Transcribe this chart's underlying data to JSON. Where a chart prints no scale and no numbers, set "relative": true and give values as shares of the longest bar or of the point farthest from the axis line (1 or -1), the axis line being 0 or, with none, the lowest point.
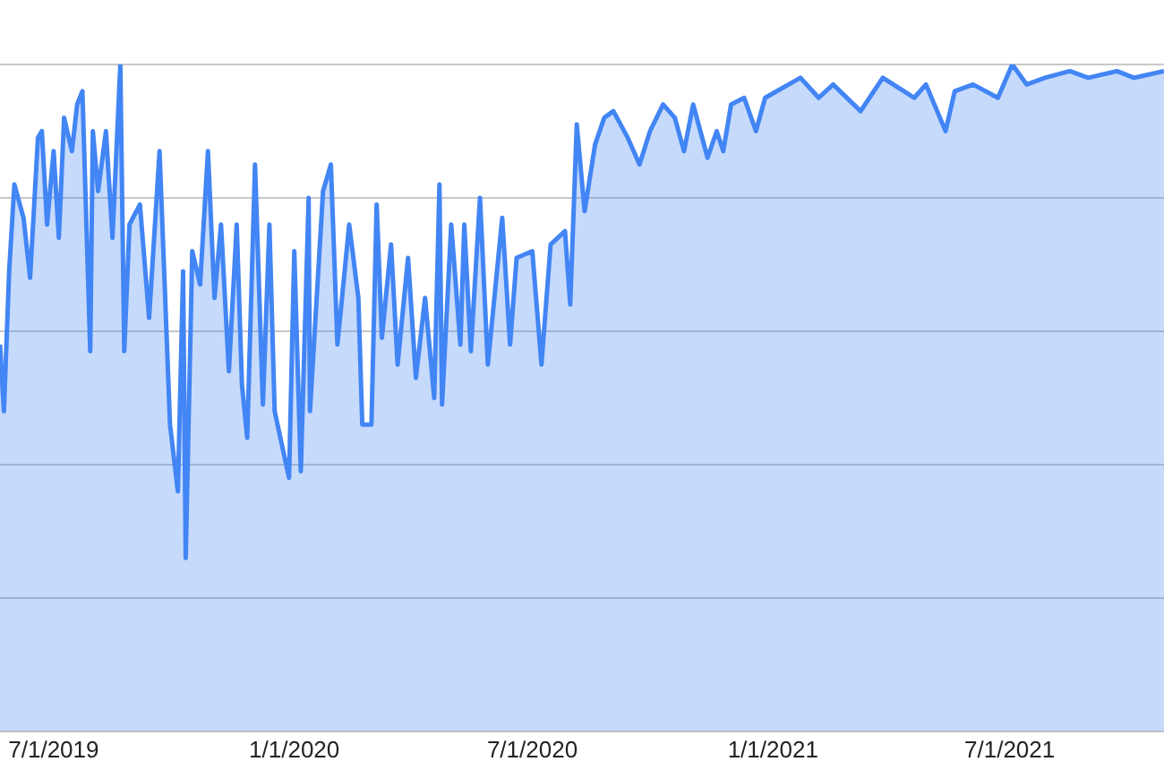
{
  "chart_data": {
    "type": "area",
    "relative": true,
    "grid": "y",
    "legend": false,
    "marker": "none",
    "line_style": "solid",
    "xlim": [
      "2019-05-21",
      "2021-10-27"
    ],
    "xticks": [
      {
        "value": "2019-07-01",
        "label": "7/1/2019"
      },
      {
        "value": "2020-01-01",
        "label": "1/1/2020"
      },
      {
        "value": "2020-07-01",
        "label": "7/1/2020"
      },
      {
        "value": "2021-01-01",
        "label": "1/1/2021"
      },
      {
        "value": "2021-07-01",
        "label": "7/1/2021"
      }
    ],
    "x": [
      "2019-05-21",
      "2019-05-24",
      "2019-05-28",
      "2019-06-01",
      "2019-06-08",
      "2019-06-13",
      "2019-06-19",
      "2019-06-22",
      "2019-06-26",
      "2019-07-01",
      "2019-07-05",
      "2019-07-09",
      "2019-07-15",
      "2019-07-19",
      "2019-07-23",
      "2019-07-29",
      "2019-07-31",
      "2019-08-04",
      "2019-08-10",
      "2019-08-15",
      "2019-08-21",
      "2019-08-24",
      "2019-08-28",
      "2019-09-05",
      "2019-09-12",
      "2019-09-20",
      "2019-09-28",
      "2019-10-04",
      "2019-10-08",
      "2019-10-10",
      "2019-10-15",
      "2019-10-21",
      "2019-10-27",
      "2019-11-01",
      "2019-11-06",
      "2019-11-12",
      "2019-11-18",
      "2019-11-22",
      "2019-11-26",
      "2019-12-02",
      "2019-12-08",
      "2019-12-13",
      "2019-12-17",
      "2019-12-28",
      "2020-01-01",
      "2020-01-06",
      "2020-01-12",
      "2020-01-13",
      "2020-01-23",
      "2020-01-29",
      "2020-02-03",
      "2020-02-12",
      "2020-02-19",
      "2020-02-22",
      "2020-02-29",
      "2020-03-04",
      "2020-03-08",
      "2020-03-15",
      "2020-03-20",
      "2020-03-28",
      "2020-04-03",
      "2020-04-10",
      "2020-04-17",
      "2020-04-21",
      "2020-04-23",
      "2020-04-30",
      "2020-05-07",
      "2020-05-10",
      "2020-05-15",
      "2020-05-22",
      "2020-05-28",
      "2020-06-08",
      "2020-06-14",
      "2020-06-19",
      "2020-07-01",
      "2020-07-08",
      "2020-07-15",
      "2020-07-26",
      "2020-07-30",
      "2020-08-04",
      "2020-08-10",
      "2020-08-18",
      "2020-08-25",
      "2020-09-01",
      "2020-09-12",
      "2020-09-21",
      "2020-09-29",
      "2020-10-09",
      "2020-10-18",
      "2020-10-25",
      "2020-11-01",
      "2020-11-12",
      "2020-11-19",
      "2020-11-24",
      "2020-11-30",
      "2020-12-10",
      "2020-12-19",
      "2020-12-26",
      "2021-01-22",
      "2021-02-05",
      "2021-02-16",
      "2021-03-09",
      "2021-03-26",
      "2021-04-19",
      "2021-04-28",
      "2021-05-13",
      "2021-05-20",
      "2021-06-03",
      "2021-06-22",
      "2021-07-03",
      "2021-07-14",
      "2021-07-28",
      "2021-08-16",
      "2021-08-30",
      "2021-09-21",
      "2021-10-04",
      "2021-10-27"
    ],
    "series": [
      {
        "color": "#4285f4",
        "values": [
          0.58,
          0.48,
          0.69,
          0.82,
          0.77,
          0.68,
          0.89,
          0.9,
          0.76,
          0.87,
          0.74,
          0.92,
          0.87,
          0.94,
          0.96,
          0.57,
          0.9,
          0.81,
          0.9,
          0.74,
          1.0,
          0.57,
          0.76,
          0.79,
          0.62,
          0.87,
          0.46,
          0.36,
          0.69,
          0.26,
          0.72,
          0.67,
          0.87,
          0.65,
          0.76,
          0.54,
          0.76,
          0.52,
          0.44,
          0.85,
          0.49,
          0.76,
          0.48,
          0.38,
          0.72,
          0.39,
          0.8,
          0.48,
          0.81,
          0.85,
          0.58,
          0.76,
          0.65,
          0.46,
          0.46,
          0.79,
          0.59,
          0.73,
          0.55,
          0.71,
          0.53,
          0.65,
          0.5,
          0.82,
          0.49,
          0.76,
          0.58,
          0.76,
          0.57,
          0.8,
          0.55,
          0.77,
          0.58,
          0.71,
          0.72,
          0.55,
          0.73,
          0.75,
          0.64,
          0.91,
          0.78,
          0.88,
          0.92,
          0.93,
          0.89,
          0.85,
          0.9,
          0.94,
          0.92,
          0.87,
          0.94,
          0.86,
          0.9,
          0.87,
          0.94,
          0.95,
          0.9,
          0.95,
          0.98,
          0.95,
          0.97,
          0.93,
          0.98,
          0.95,
          0.97,
          0.9,
          0.96,
          0.97,
          0.95,
          1.0,
          0.97,
          0.98,
          0.99,
          0.98,
          0.99,
          0.98,
          0.99
        ]
      }
    ]
  }
}
